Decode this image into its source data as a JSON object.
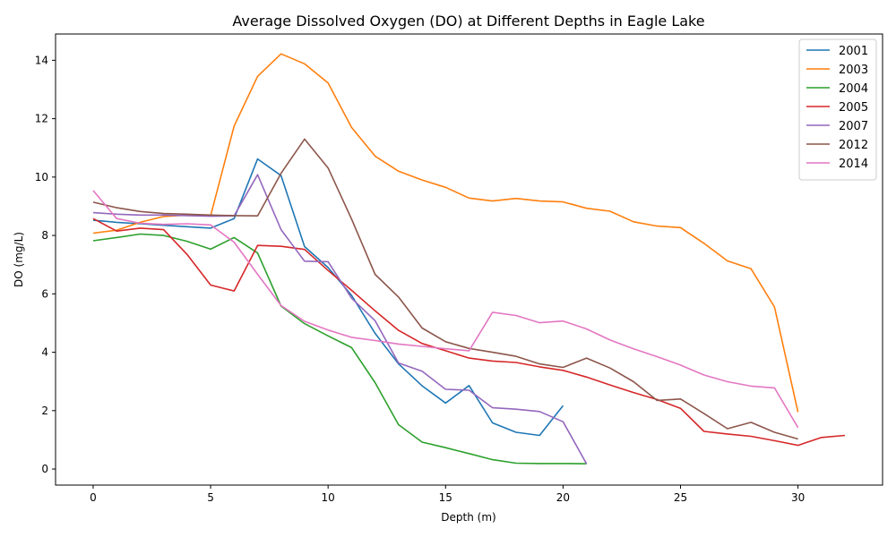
{
  "chart_data": {
    "type": "line",
    "title": "Average Dissolved Oxygen (DO) at Different Depths in Eagle Lake",
    "xlabel": "Depth (m)",
    "ylabel": "DO (mg/L)",
    "xlim": [
      -1.6,
      33.6
    ],
    "ylim": [
      -0.55,
      14.9
    ],
    "xticks": [
      0,
      5,
      10,
      15,
      20,
      25,
      30
    ],
    "yticks": [
      0,
      2,
      4,
      6,
      8,
      10,
      12,
      14
    ],
    "grid": false,
    "legend_position": "top-right",
    "series": [
      {
        "name": "2001",
        "color": "#1f77b4",
        "x": [
          0,
          1,
          2,
          3,
          4,
          5,
          6,
          7,
          8,
          9,
          10,
          11,
          12,
          13,
          14,
          15,
          16,
          17,
          18,
          19,
          20
        ],
        "y": [
          8.52,
          8.45,
          8.4,
          8.35,
          8.3,
          8.25,
          8.58,
          10.62,
          10.05,
          7.62,
          6.9,
          5.95,
          4.65,
          3.6,
          2.85,
          2.26,
          2.86,
          1.58,
          1.26,
          1.15,
          2.17
        ]
      },
      {
        "name": "2003",
        "color": "#ff7f0e",
        "x": [
          0,
          1,
          2,
          3,
          4,
          5,
          6,
          7,
          8,
          9,
          10,
          11,
          12,
          13,
          14,
          15,
          16,
          17,
          18,
          19,
          20,
          21,
          22,
          23,
          24,
          25,
          26,
          27,
          28,
          29,
          30
        ],
        "y": [
          8.08,
          8.18,
          8.45,
          8.65,
          8.7,
          8.68,
          11.75,
          13.45,
          14.22,
          13.88,
          13.22,
          11.7,
          10.72,
          10.2,
          9.9,
          9.65,
          9.28,
          9.18,
          9.27,
          9.18,
          9.15,
          8.93,
          8.83,
          8.47,
          8.32,
          8.27,
          7.73,
          7.13,
          6.86,
          5.55,
          1.95
        ]
      },
      {
        "name": "2004",
        "color": "#2ca02c",
        "x": [
          0,
          1,
          2,
          3,
          4,
          5,
          6,
          7,
          8,
          9,
          10,
          11,
          12,
          13,
          14,
          15,
          16,
          17,
          18,
          19,
          20,
          21
        ],
        "y": [
          7.82,
          7.93,
          8.05,
          8.0,
          7.8,
          7.53,
          7.93,
          7.4,
          5.58,
          4.98,
          4.56,
          4.16,
          2.96,
          1.52,
          0.92,
          0.73,
          0.53,
          0.32,
          0.2,
          0.19,
          0.19,
          0.18
        ]
      },
      {
        "name": "2005",
        "color": "#d62728",
        "x": [
          0,
          1,
          2,
          3,
          4,
          5,
          6,
          7,
          8,
          9,
          10,
          11,
          12,
          13,
          14,
          15,
          16,
          17,
          18,
          19,
          20,
          21,
          22,
          23,
          24,
          25,
          26,
          27,
          28,
          29,
          30,
          31,
          32
        ],
        "y": [
          8.58,
          8.15,
          8.25,
          8.2,
          7.35,
          6.3,
          6.1,
          7.66,
          7.63,
          7.52,
          6.8,
          6.12,
          5.42,
          4.75,
          4.3,
          4.05,
          3.8,
          3.7,
          3.65,
          3.5,
          3.38,
          3.15,
          2.88,
          2.62,
          2.38,
          2.08,
          1.29,
          1.2,
          1.12,
          0.97,
          0.81,
          1.08,
          1.15
        ]
      },
      {
        "name": "2007",
        "color": "#9467bd",
        "x": [
          0,
          1,
          2,
          3,
          4,
          5,
          6,
          7,
          8,
          9,
          10,
          11,
          12,
          13,
          14,
          15,
          16,
          17,
          18,
          19,
          20,
          21
        ],
        "y": [
          8.78,
          8.73,
          8.7,
          8.7,
          8.68,
          8.66,
          8.67,
          10.08,
          8.2,
          7.12,
          7.1,
          5.85,
          5.08,
          3.63,
          3.35,
          2.73,
          2.7,
          2.1,
          2.05,
          1.97,
          1.62,
          0.18
        ]
      },
      {
        "name": "2012",
        "color": "#8c564b",
        "x": [
          0,
          1,
          2,
          3,
          4,
          5,
          6,
          7,
          8,
          9,
          10,
          11,
          12,
          13,
          14,
          15,
          16,
          17,
          18,
          19,
          20,
          21,
          22,
          23,
          24,
          25,
          26,
          27,
          28,
          29,
          30
        ],
        "y": [
          9.14,
          8.95,
          8.82,
          8.75,
          8.73,
          8.7,
          8.68,
          8.67,
          10.13,
          11.3,
          10.31,
          8.56,
          6.67,
          5.89,
          4.83,
          4.36,
          4.13,
          4.0,
          3.86,
          3.6,
          3.48,
          3.8,
          3.46,
          2.99,
          2.35,
          2.4,
          1.9,
          1.38,
          1.6,
          1.26,
          1.03
        ]
      },
      {
        "name": "2014",
        "color": "#e377c2",
        "x": [
          0,
          1,
          2,
          3,
          4,
          5,
          6,
          7,
          8,
          9,
          10,
          11,
          12,
          13,
          14,
          15,
          16,
          17,
          18,
          19,
          20,
          21,
          22,
          23,
          24,
          25,
          26,
          27,
          28,
          29,
          30
        ],
        "y": [
          9.54,
          8.58,
          8.42,
          8.38,
          8.4,
          8.36,
          7.77,
          6.67,
          5.6,
          5.06,
          4.76,
          4.51,
          4.4,
          4.28,
          4.2,
          4.12,
          4.05,
          5.37,
          5.26,
          5.01,
          5.07,
          4.8,
          4.42,
          4.12,
          3.85,
          3.56,
          3.22,
          2.99,
          2.84,
          2.78,
          1.42
        ]
      }
    ]
  }
}
